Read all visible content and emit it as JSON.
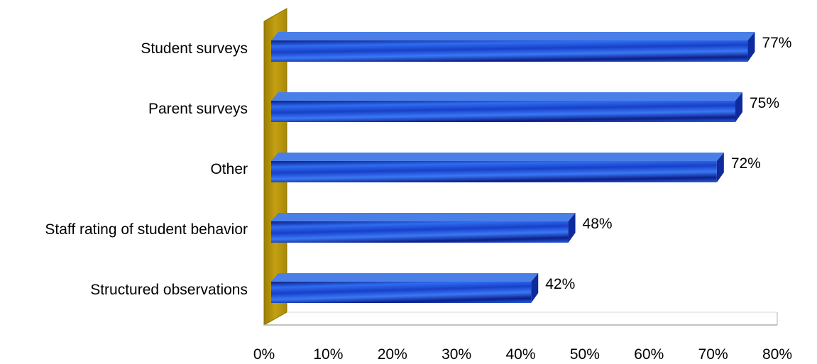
{
  "chart_data": {
    "type": "bar",
    "orientation": "horizontal",
    "categories": [
      "Student surveys",
      "Parent surveys",
      "Other",
      "Staff rating of student behavior",
      "Structured observations"
    ],
    "values": [
      77,
      75,
      72,
      48,
      42
    ],
    "value_labels": [
      "77%",
      "75%",
      "72%",
      "48%",
      "42%"
    ],
    "x_ticks": [
      "0%",
      "10%",
      "20%",
      "30%",
      "40%",
      "50%",
      "60%",
      "70%",
      "80%"
    ],
    "xlim": [
      0,
      80
    ],
    "title": "",
    "xlabel": "",
    "ylabel": "",
    "grid": false,
    "legend": "none",
    "style": "3d",
    "colors": {
      "bar_front_light": "#2f6cf0",
      "bar_front_dark": "#0c1f8a",
      "bar_top": "#4a7fe8",
      "bar_side": "#0f2a9c",
      "wall": "#b8960a",
      "wall_edge": "#8a7000",
      "axis": "#b0b0b0"
    }
  }
}
